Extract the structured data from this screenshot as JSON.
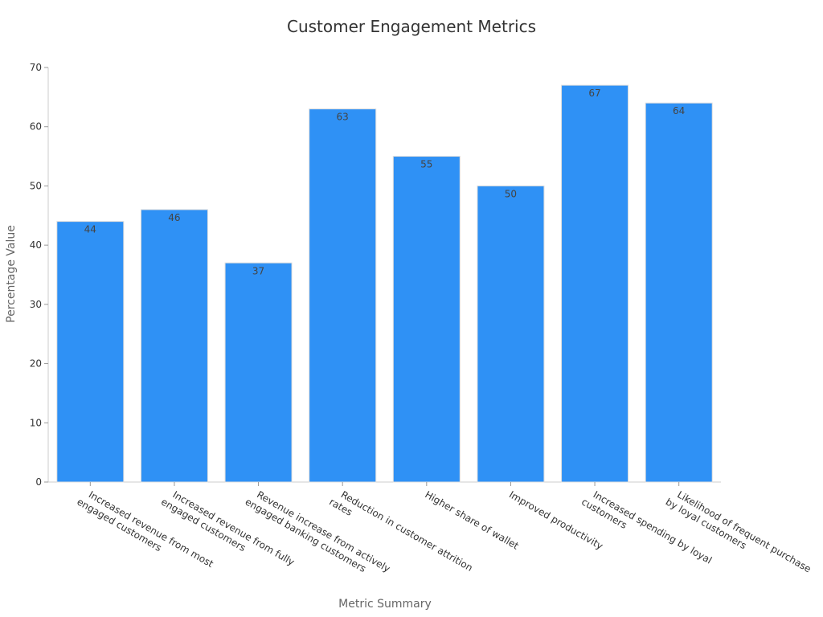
{
  "chart_data": {
    "type": "bar",
    "title": "Customer Engagement Metrics",
    "xlabel": "Metric Summary",
    "ylabel": "Percentage Value",
    "categories": [
      [
        "Increased revenue from most",
        "engaged customers"
      ],
      [
        "Increased revenue from fully",
        "engaged customers"
      ],
      [
        "Revenue increase from actively",
        "engaged banking customers"
      ],
      [
        "Reduction in customer attrition",
        "rates"
      ],
      [
        "Higher share of wallet"
      ],
      [
        "Improved productivity"
      ],
      [
        "Increased spending by loyal",
        "customers"
      ],
      [
        "Likelihood of frequent purchase",
        "by loyal customers"
      ]
    ],
    "values": [
      44,
      46,
      37,
      63,
      55,
      50,
      67,
      64
    ],
    "ylim": [
      0,
      70
    ],
    "yticks": [
      0,
      10,
      20,
      30,
      40,
      50,
      60,
      70
    ],
    "grid": false,
    "bar_color": "#2f91f5",
    "bar_edge_color": "#dddddd",
    "show_data_labels": true
  }
}
